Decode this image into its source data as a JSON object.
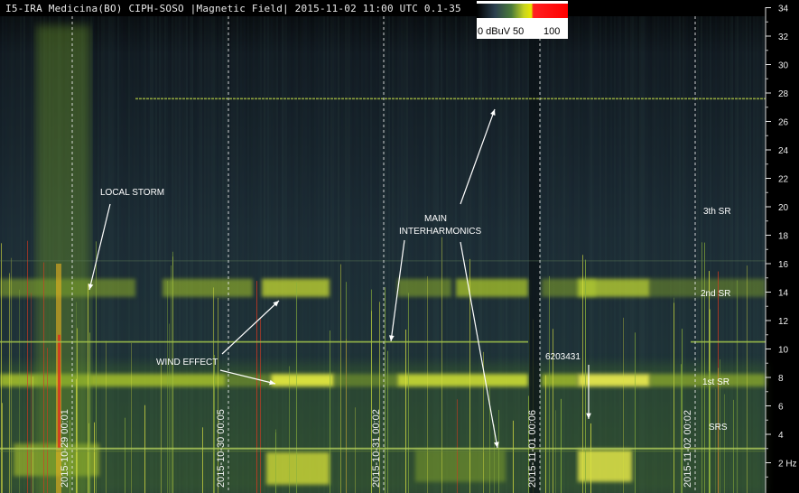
{
  "chart_data": {
    "type": "heatmap",
    "title": "I5-IRA Medicina(BO) CIPH-SOSO |Magnetic Field| 2015-11-02 11:00 UTC 0.1-35",
    "ylabel_unit": "2 Hz",
    "yticks": [
      2,
      4,
      6,
      8,
      10,
      12,
      14,
      16,
      18,
      20,
      22,
      24,
      26,
      28,
      30,
      32,
      34
    ],
    "ylim": [
      0.1,
      35
    ],
    "date_markers": [
      "2015-10-29 00:01",
      "2015-10-30 00:05",
      "2015-10-31 00:02",
      "2015-11-01 00:06",
      "2015-11-02 00:02"
    ],
    "colorbar": {
      "labels": [
        "0 dBuV",
        "50",
        "100"
      ],
      "colors": [
        "#000000",
        "#2b3f4f",
        "#4a7a3a",
        "#c8d420",
        "#e8e800",
        "#ff2020",
        "#ff0000"
      ]
    },
    "annotations": [
      {
        "id": "local-storm",
        "text": "LOCAL STORM"
      },
      {
        "id": "wind-effect",
        "text": "WIND EFFECT"
      },
      {
        "id": "main-interharmonics-1",
        "text": "MAIN"
      },
      {
        "id": "main-interharmonics-2",
        "text": "INTERHARMONICS"
      },
      {
        "id": "id-number",
        "text": "6203431"
      },
      {
        "id": "sr3",
        "text": "3th SR"
      },
      {
        "id": "sr2",
        "text": "2nd SR"
      },
      {
        "id": "sr1",
        "text": "1st SR"
      },
      {
        "id": "srs",
        "text": "SRS"
      }
    ],
    "bands_hz": {
      "line_high": 27.6,
      "line_mid": 10.5,
      "sr1": 7.8,
      "sr2": 14.3,
      "low_line": 3.0
    }
  }
}
